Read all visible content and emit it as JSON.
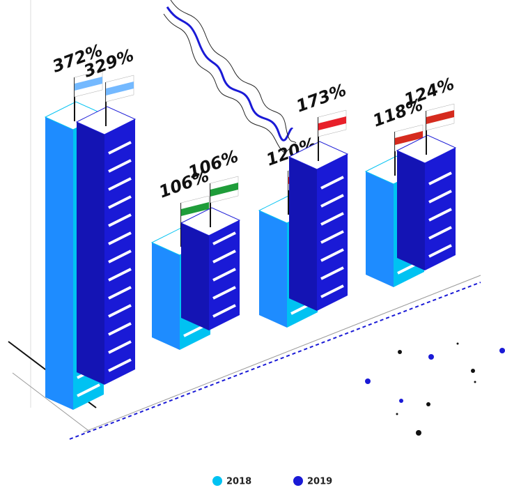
{
  "chart_data": {
    "type": "bar",
    "categories": [
      null,
      null,
      null,
      null
    ],
    "series": [
      {
        "name": "2018",
        "color": "#00c2f2",
        "values": [
          372,
          106,
          120,
          118
        ],
        "value_labels": [
          "372%",
          "106%",
          "120%",
          "118%"
        ]
      },
      {
        "name": "2019",
        "color": "#1a1ad6",
        "values": [
          329,
          106,
          173,
          124
        ],
        "value_labels": [
          "329%",
          "106%",
          "173%",
          "124%"
        ]
      }
    ]
  }
}
